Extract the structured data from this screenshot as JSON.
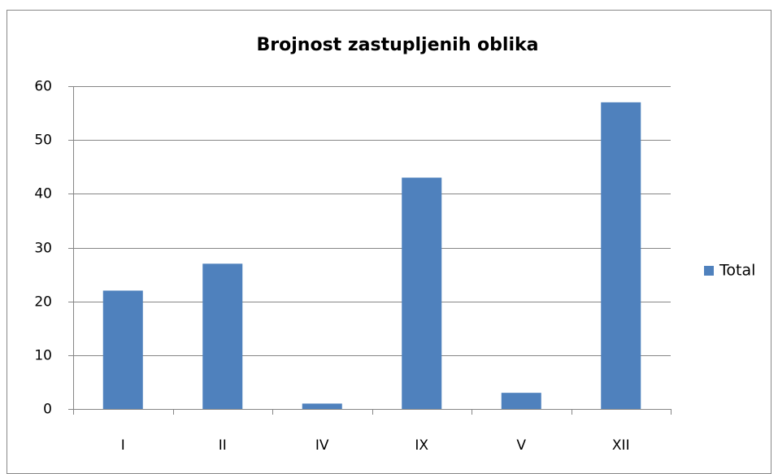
{
  "chart_data": {
    "type": "bar",
    "title": "Brojnost zastupljenih oblika",
    "categories": [
      "I",
      "II",
      "IV",
      "IX",
      "V",
      "XII"
    ],
    "series": [
      {
        "name": "Total",
        "color": "#4f81bd",
        "values": [
          22,
          27,
          1,
          43,
          3,
          57
        ]
      }
    ],
    "ylim": [
      0,
      60
    ],
    "yticks": [
      0,
      10,
      20,
      30,
      40,
      50,
      60
    ],
    "grid": true,
    "legend": "right"
  }
}
